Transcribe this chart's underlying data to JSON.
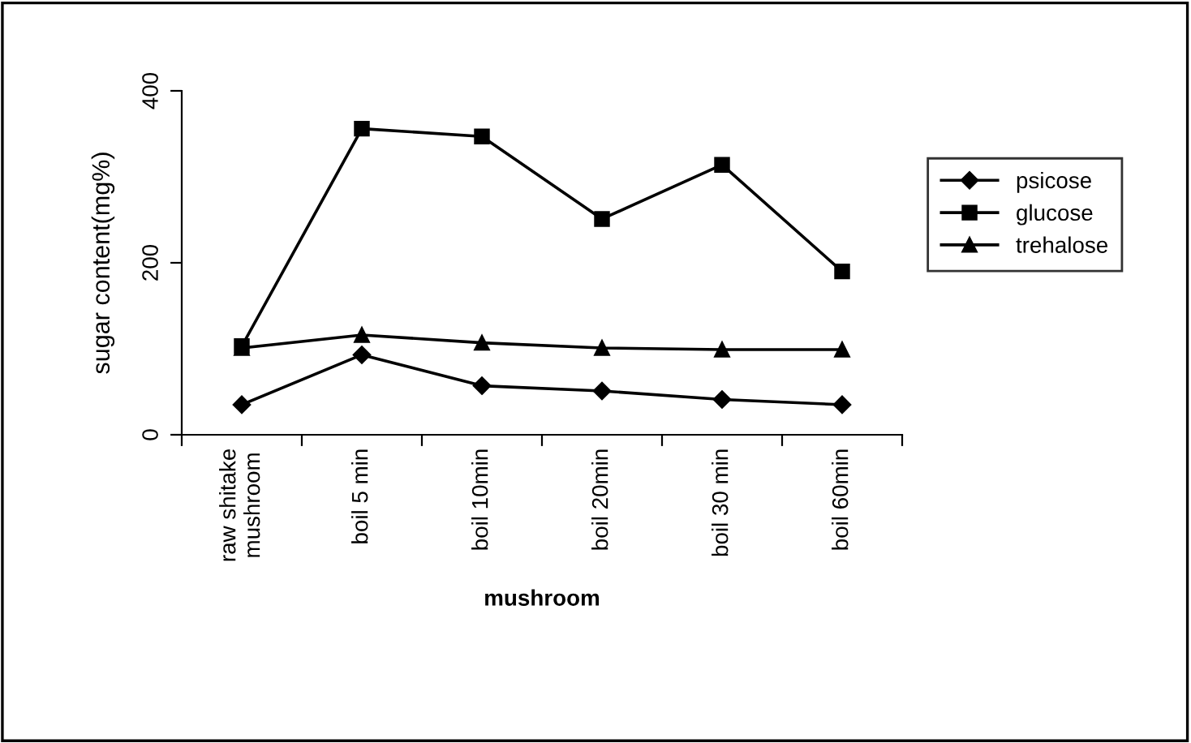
{
  "chart_data": {
    "type": "line",
    "xlabel": "mushroom",
    "ylabel": "sugar content(mg%)",
    "categories": [
      "raw shitake\nmushroom",
      "boil 5 min",
      "boil 10min",
      "boil 20min",
      "boil 30 min",
      "boil 60min"
    ],
    "series": [
      {
        "name": "psicose",
        "color": "#000000",
        "marker": "diamond",
        "values": [
          35,
          93,
          57,
          51,
          41,
          35
        ]
      },
      {
        "name": "glucose",
        "color": "#000000",
        "marker": "square",
        "values": [
          103,
          356,
          347,
          251,
          314,
          190
        ]
      },
      {
        "name": "trehalose",
        "color": "#000000",
        "marker": "triangle",
        "values": [
          101,
          116,
          107,
          101,
          99,
          99
        ]
      }
    ],
    "ylim": [
      0,
      400
    ],
    "yticks": [
      0,
      200,
      400
    ],
    "grid": false,
    "legend": "right",
    "line_style": "solid"
  }
}
